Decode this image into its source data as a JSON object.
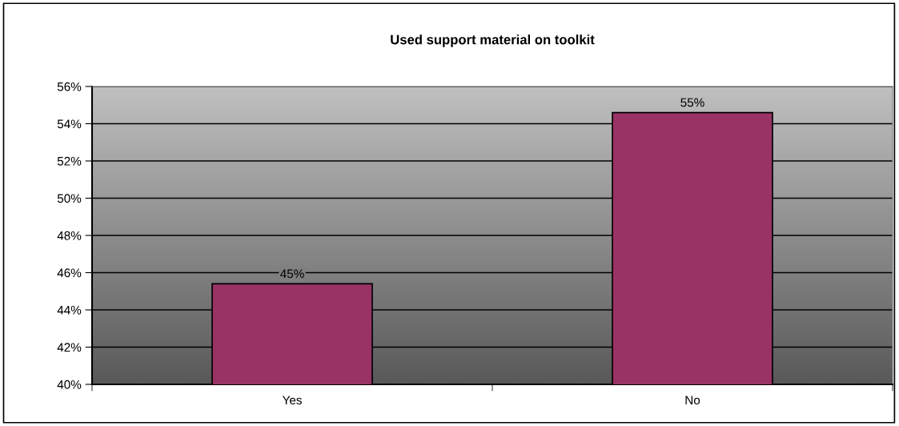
{
  "chart_data": {
    "type": "bar",
    "title": "Used support material on toolkit",
    "categories": [
      "Yes",
      "No"
    ],
    "values": [
      45.4,
      54.6
    ],
    "value_labels": [
      "45%",
      "55%"
    ],
    "color": "#993366",
    "ylim": [
      40,
      56
    ],
    "yticks": [
      {
        "value": 40,
        "label": "40%"
      },
      {
        "value": 42,
        "label": "42%"
      },
      {
        "value": 44,
        "label": "44%"
      },
      {
        "value": 46,
        "label": "46%"
      },
      {
        "value": 48,
        "label": "48%"
      },
      {
        "value": 50,
        "label": "50%"
      },
      {
        "value": 52,
        "label": "52%"
      },
      {
        "value": 54,
        "label": "54%"
      },
      {
        "value": 56,
        "label": "56%"
      }
    ],
    "grid": "y",
    "legend": false
  }
}
